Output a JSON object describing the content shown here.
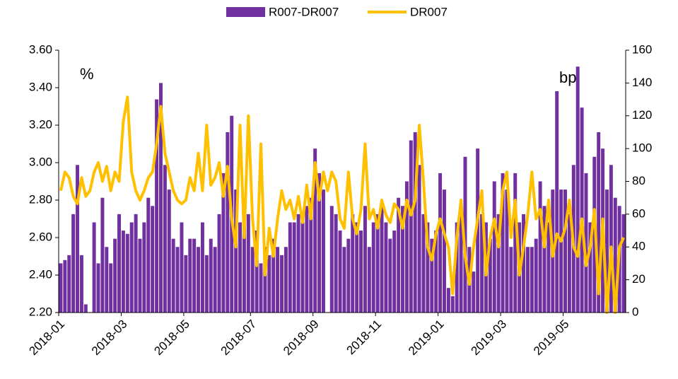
{
  "chart_data": {
    "type": "bar-line",
    "categories": [
      "2018-01",
      null,
      null,
      null,
      null,
      null,
      null,
      null,
      null,
      null,
      null,
      null,
      null,
      null,
      null,
      "2018-03",
      null,
      null,
      null,
      null,
      null,
      null,
      null,
      null,
      null,
      null,
      null,
      null,
      null,
      null,
      "2018-05",
      null,
      null,
      null,
      null,
      null,
      null,
      null,
      null,
      null,
      null,
      null,
      null,
      null,
      null,
      null,
      "2018-07",
      null,
      null,
      null,
      null,
      null,
      null,
      null,
      null,
      null,
      null,
      null,
      null,
      null,
      null,
      "2018-09",
      null,
      null,
      null,
      null,
      null,
      null,
      null,
      null,
      null,
      null,
      null,
      null,
      null,
      null,
      "2018-11",
      null,
      null,
      null,
      null,
      null,
      null,
      null,
      null,
      null,
      null,
      null,
      null,
      null,
      null,
      "2019-01",
      null,
      null,
      null,
      null,
      null,
      null,
      null,
      null,
      null,
      null,
      null,
      null,
      null,
      null,
      "2019-03",
      null,
      null,
      null,
      null,
      null,
      null,
      null,
      null,
      null,
      null,
      null,
      null,
      null,
      null,
      "2019-05",
      null,
      null,
      null,
      null,
      null,
      null,
      null,
      null,
      null,
      null,
      null,
      null,
      null,
      null
    ],
    "series": [
      {
        "name": "R007-DR007",
        "type": "bar",
        "axis": "y2",
        "color": "#7030a0",
        "values": [
          30,
          32,
          35,
          60,
          90,
          35,
          5,
          0,
          55,
          30,
          70,
          40,
          30,
          45,
          60,
          50,
          48,
          55,
          60,
          45,
          55,
          70,
          65,
          130,
          140,
          90,
          75,
          45,
          40,
          55,
          35,
          45,
          45,
          40,
          55,
          35,
          45,
          40,
          60,
          85,
          110,
          120,
          75,
          55,
          65,
          60,
          40,
          50,
          30,
          40,
          35,
          45,
          40,
          35,
          40,
          55,
          55,
          60,
          55,
          65,
          70,
          100,
          85,
          75,
          0,
          65,
          60,
          50,
          40,
          45,
          60,
          55,
          50,
          65,
          40,
          55,
          60,
          65,
          55,
          45,
          50,
          70,
          65,
          80,
          105,
          110,
          90,
          60,
          55,
          45,
          50,
          85,
          75,
          15,
          10,
          55,
          65,
          95,
          40,
          25,
          100,
          60,
          55,
          45,
          80,
          60,
          85,
          75,
          40,
          85,
          55,
          60,
          40,
          40,
          45,
          80,
          65,
          55,
          75,
          135,
          75,
          75,
          60,
          90,
          150,
          125,
          85,
          55,
          95,
          110,
          100,
          75,
          90,
          70,
          65,
          60
        ]
      },
      {
        "name": "DR007",
        "type": "line",
        "axis": "y",
        "color": "#ffc000",
        "values": [
          2.85,
          2.95,
          2.92,
          2.82,
          2.78,
          2.92,
          2.82,
          2.85,
          2.95,
          3.0,
          2.9,
          2.98,
          2.85,
          2.95,
          2.9,
          3.22,
          3.35,
          2.95,
          2.85,
          2.8,
          2.85,
          2.92,
          2.95,
          3.1,
          3.3,
          3.05,
          2.95,
          2.85,
          2.8,
          2.78,
          2.8,
          2.92,
          2.85,
          3.05,
          2.85,
          3.2,
          2.88,
          2.92,
          3.0,
          2.82,
          2.98,
          2.7,
          2.55,
          3.2,
          2.6,
          3.25,
          2.7,
          2.45,
          3.1,
          2.4,
          2.65,
          2.5,
          2.7,
          2.85,
          2.75,
          2.8,
          2.7,
          2.82,
          2.68,
          2.88,
          2.7,
          3.0,
          2.8,
          2.95,
          2.85,
          2.95,
          2.9,
          2.7,
          2.65,
          2.95,
          2.7,
          2.62,
          2.75,
          3.1,
          2.7,
          2.75,
          2.65,
          2.8,
          2.72,
          2.68,
          2.78,
          2.75,
          2.65,
          2.8,
          2.72,
          2.8,
          3.2,
          2.9,
          2.55,
          2.48,
          2.62,
          2.7,
          2.62,
          2.55,
          2.3,
          2.6,
          2.8,
          2.5,
          2.35,
          2.55,
          2.7,
          2.85,
          2.4,
          2.6,
          2.7,
          2.55,
          2.85,
          2.95,
          2.6,
          2.8,
          2.4,
          2.55,
          2.72,
          2.95,
          2.7,
          2.75,
          2.55,
          2.8,
          2.5,
          2.62,
          2.58,
          2.65,
          2.8,
          2.55,
          2.5,
          2.7,
          2.45,
          2.55,
          2.75,
          2.3,
          2.7,
          2.2,
          2.55,
          2.2,
          2.55,
          2.6
        ]
      }
    ],
    "ylim": [
      2.2,
      3.6
    ],
    "yticks": [
      {
        "value": 2.2,
        "label": "2.20"
      },
      {
        "value": 2.4,
        "label": "2.40"
      },
      {
        "value": 2.6,
        "label": "2.60"
      },
      {
        "value": 2.8,
        "label": "2.80"
      },
      {
        "value": 3.0,
        "label": "3.00"
      },
      {
        "value": 3.2,
        "label": "3.20"
      },
      {
        "value": 3.4,
        "label": "3.40"
      },
      {
        "value": 3.6,
        "label": "3.60"
      }
    ],
    "y2lim": [
      0,
      160
    ],
    "y2ticks": [
      0,
      20,
      40,
      60,
      80,
      100,
      120,
      140,
      160
    ],
    "annotations": [
      "%",
      "bp"
    ],
    "legend": "top"
  }
}
